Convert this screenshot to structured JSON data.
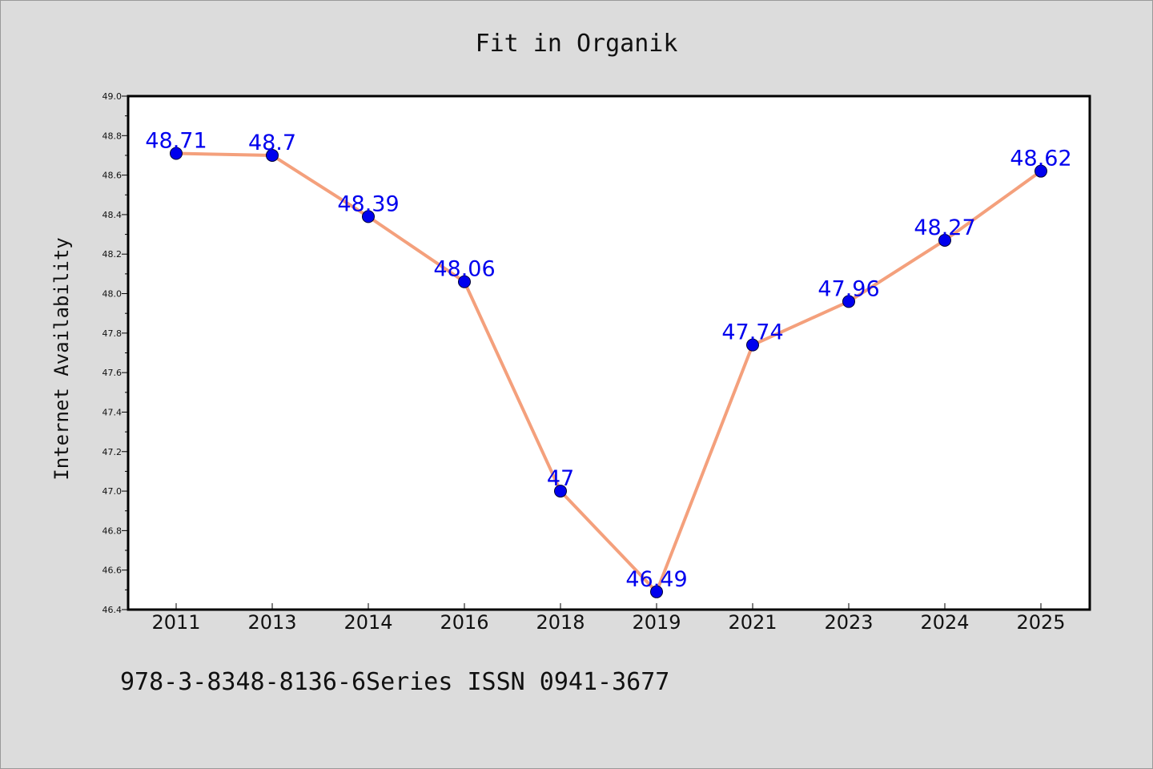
{
  "chart_data": {
    "type": "line",
    "title": "Fit in Organik",
    "xlabel": "",
    "ylabel": "Internet Availability",
    "categories": [
      "2011",
      "2013",
      "2014",
      "2016",
      "2018",
      "2019",
      "2021",
      "2023",
      "2024",
      "2025"
    ],
    "series": [
      {
        "values": [
          48.71,
          48.7,
          48.39,
          48.06,
          47.0,
          46.49,
          47.74,
          47.96,
          48.27,
          48.62
        ],
        "labels": [
          "48.71",
          "48.7",
          "48.39",
          "48.06",
          "47",
          "46.49",
          "47.74",
          "47.96",
          "48.27",
          "48.62"
        ],
        "line_color": "#f4a07c",
        "marker_color": "#0000ee",
        "label_color": "#0000ee"
      }
    ],
    "ylim": [
      46.4,
      49.0
    ],
    "yticks": [
      "46.4",
      "46.6",
      "46.8",
      "47.0",
      "47.2",
      "47.4",
      "47.6",
      "47.8",
      "48.0",
      "48.2",
      "48.4",
      "48.6",
      "48.8",
      "49.0"
    ],
    "grid": false,
    "legend": "none"
  },
  "footnote": "978-3-8348-8136-6Series ISSN 0941-3677"
}
